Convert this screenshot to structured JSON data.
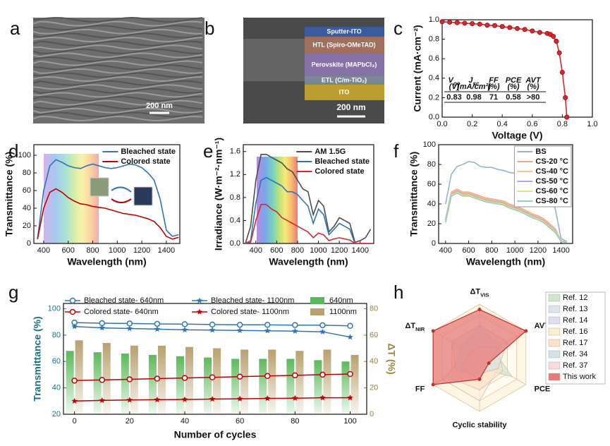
{
  "panel_labels": [
    "a",
    "b",
    "c",
    "d",
    "e",
    "f",
    "g",
    "h"
  ],
  "images": [
    {
      "scale_bar": "200 nm"
    },
    {
      "layers": [
        "Sputter-ITO",
        "HTL (Spiro-OMeTAD)",
        "Perovskite (MAPbCl₃)",
        "ETL (C/m-TiO₂)",
        "ITO"
      ],
      "scale_bar": "200 nm"
    }
  ],
  "chart_data": [
    {
      "type": "line",
      "marker": "circle",
      "color": "#d7262c",
      "x": [
        0,
        0.05,
        0.1,
        0.15,
        0.2,
        0.25,
        0.3,
        0.35,
        0.4,
        0.45,
        0.5,
        0.55,
        0.6,
        0.65,
        0.7,
        0.72,
        0.74,
        0.76,
        0.78,
        0.8,
        0.82,
        0.83
      ],
      "values": [
        0.98,
        0.975,
        0.97,
        0.965,
        0.96,
        0.955,
        0.945,
        0.94,
        0.93,
        0.92,
        0.91,
        0.9,
        0.885,
        0.87,
        0.86,
        0.85,
        0.83,
        0.78,
        0.66,
        0.46,
        0.2,
        0.0
      ],
      "x_label": "Voltage (V)",
      "y_label": "Current (mA·cm⁻²)",
      "xlim": [
        0,
        1
      ],
      "ylim": [
        0,
        1
      ],
      "xticks": [
        {
          "value": 0,
          "label": "0.0"
        },
        {
          "value": 0.2,
          "label": "0.2"
        },
        {
          "value": 0.4,
          "label": "0.4"
        },
        {
          "value": 0.6,
          "label": "0.6"
        },
        {
          "value": 0.8,
          "label": "0.8"
        },
        {
          "value": 1,
          "label": "1.0"
        }
      ],
      "yticks": [
        {
          "value": 0,
          "label": "0.0"
        },
        {
          "value": 0.2,
          "label": "0.2"
        },
        {
          "value": 0.4,
          "label": "0.4"
        },
        {
          "value": 0.6,
          "label": "0.6"
        },
        {
          "value": 0.8,
          "label": "0.8"
        },
        {
          "value": 1,
          "label": "1.0"
        }
      ],
      "table": {
        "columns": [
          {
            "symbol": "V",
            "sub": "oc",
            "unit": "(V)"
          },
          {
            "symbol": "J",
            "sub": "sc",
            "unit": "(mA/cm²)"
          },
          {
            "symbol": "FF",
            "unit": "(%)"
          },
          {
            "symbol": "PCE",
            "unit": "(%)"
          },
          {
            "symbol": "AVT",
            "unit": "(%)"
          }
        ],
        "values": [
          "0.83",
          "0.98",
          "71",
          "0.58",
          ">80"
        ]
      }
    },
    {
      "type": "line",
      "legend": "upper right",
      "x": [
        350,
        400,
        450,
        500,
        550,
        600,
        650,
        700,
        750,
        800,
        850,
        900,
        950,
        1000,
        1050,
        1100,
        1150,
        1200,
        1250,
        1300,
        1350,
        1400,
        1450,
        1500
      ],
      "series": [
        {
          "name": "Bleached state",
          "color": "#2e75b6",
          "values": [
            5,
            60,
            88,
            95,
            92,
            88,
            86,
            85,
            88,
            90,
            88,
            86,
            85,
            86,
            88,
            90,
            89,
            86,
            80,
            72,
            50,
            15,
            8,
            10
          ]
        },
        {
          "name": "Colored state",
          "color": "#c00000",
          "values": [
            5,
            40,
            58,
            62,
            58,
            52,
            48,
            45,
            44,
            42,
            41,
            40,
            38,
            36,
            34,
            33,
            32,
            30,
            28,
            25,
            18,
            8,
            5,
            7
          ]
        }
      ],
      "x_label": "Wavelength (nm)",
      "y_label": "Transmittance (%)",
      "xlim": [
        320,
        1510
      ],
      "ylim": [
        0,
        112
      ],
      "xticks": [
        400,
        600,
        800,
        1000,
        1200,
        1400
      ],
      "yticks": [
        0,
        20,
        40,
        60,
        80,
        100
      ]
    },
    {
      "type": "line",
      "legend": "upper right",
      "x": [
        300,
        350,
        400,
        450,
        500,
        550,
        600,
        650,
        700,
        750,
        800,
        850,
        900,
        950,
        1000,
        1050,
        1100,
        1150,
        1200,
        1250,
        1300,
        1350,
        1400,
        1450,
        1500
      ],
      "series": [
        {
          "name": "AM 1.5G",
          "color": "#4d4d4d",
          "values": [
            0,
            0.3,
            1.1,
            1.55,
            1.55,
            1.5,
            1.45,
            1.4,
            1.3,
            1.25,
            1.1,
            0.95,
            0.9,
            0.5,
            0.75,
            0.65,
            0.2,
            0.3,
            0.45,
            0.4,
            0.35,
            0.02,
            0.05,
            0.1,
            0.25
          ]
        },
        {
          "name": "Bleached state",
          "color": "#2e75b6",
          "values": [
            0,
            0.05,
            0.7,
            1.1,
            1.15,
            1.1,
            1.05,
            1.0,
            0.9,
            0.9,
            0.85,
            0.75,
            0.65,
            0.35,
            0.6,
            0.5,
            0.15,
            0.25,
            0.35,
            0.3,
            0.25,
            0,
            0,
            0,
            0
          ]
        },
        {
          "name": "Colored state",
          "color": "#d7262c",
          "values": [
            0,
            0.02,
            0.4,
            0.68,
            0.68,
            0.6,
            0.55,
            0.45,
            0.4,
            0.35,
            0.3,
            0.25,
            0.2,
            0.1,
            0.18,
            0.15,
            0.05,
            0.08,
            0.1,
            0.08,
            0.06,
            0,
            0,
            0,
            0
          ]
        }
      ],
      "x_label": "Wavelength (nm)",
      "y_label": "Irradiance (W·m⁻²·nm⁻¹)",
      "xlim": [
        280,
        1530
      ],
      "ylim": [
        0,
        1.72
      ],
      "xticks": [
        400,
        600,
        800,
        1000,
        1200,
        1400
      ],
      "yticks": [
        {
          "value": 0,
          "label": "0.0"
        },
        {
          "value": 0.4,
          "label": "0.4"
        },
        {
          "value": 0.8,
          "label": "0.8"
        },
        {
          "value": 1.2,
          "label": "1.2"
        },
        {
          "value": 1.6,
          "label": "1.6"
        }
      ]
    },
    {
      "type": "line",
      "legend": "upper right",
      "legend_frame": true,
      "x": [
        400,
        450,
        500,
        550,
        600,
        650,
        700,
        750,
        800,
        850,
        900,
        950,
        1000,
        1050,
        1100,
        1150,
        1200,
        1250,
        1300,
        1350,
        1400,
        1450
      ],
      "series": [
        {
          "name": "BS",
          "color": "#8fb4d6",
          "values": [
            40,
            70,
            78,
            80,
            83,
            82,
            78,
            77,
            77,
            75,
            74,
            72,
            71,
            70,
            68,
            65,
            60,
            55,
            48,
            35,
            5,
            2
          ]
        },
        {
          "name": "CS-20 °C",
          "color": "#f4a582",
          "values": [
            25,
            52,
            55,
            52,
            52,
            50,
            48,
            46,
            45,
            44,
            43,
            40,
            38,
            36,
            33,
            30,
            28,
            25,
            20,
            15,
            3,
            1
          ]
        },
        {
          "name": "CS-40 °C",
          "color": "#f7c48d",
          "values": [
            24,
            51,
            54,
            51,
            51,
            49,
            47,
            45,
            44,
            43,
            42,
            39,
            37,
            35,
            32,
            29,
            27,
            24,
            19,
            14,
            3,
            1
          ]
        },
        {
          "name": "CS-50 °C",
          "color": "#b4a7d6",
          "values": [
            23,
            50,
            53,
            50,
            50,
            48,
            46,
            44,
            43,
            42,
            41,
            38,
            36,
            34,
            31,
            28,
            26,
            23,
            18,
            13,
            2,
            1
          ]
        },
        {
          "name": "CS-60 °C",
          "color": "#f0dc7a",
          "values": [
            22,
            49,
            52,
            49,
            49,
            47,
            45,
            43,
            42,
            41,
            40,
            37,
            35,
            33,
            30,
            27,
            25,
            22,
            17,
            12,
            2,
            1
          ]
        },
        {
          "name": "CS-80 °C",
          "color": "#8fd0c2",
          "values": [
            21,
            48,
            51,
            48,
            48,
            46,
            44,
            42,
            41,
            40,
            39,
            36,
            34,
            32,
            29,
            26,
            24,
            21,
            16,
            11,
            2,
            1
          ]
        }
      ],
      "x_label": "Wavelength (nm)",
      "y_label": "Transmittance (%)",
      "xlim": [
        340,
        1500
      ],
      "ylim": [
        0,
        100
      ],
      "xticks": [
        400,
        600,
        800,
        1000,
        1200,
        1400
      ],
      "yticks": [
        0,
        20,
        40,
        60,
        80,
        100
      ]
    },
    {
      "type": "combo",
      "x": [
        0,
        10,
        20,
        30,
        40,
        50,
        60,
        70,
        80,
        90,
        100
      ],
      "series": [
        {
          "name": "Bleached state- 640nm",
          "color": "#2e75b6",
          "marker": "circle",
          "values": [
            89.5,
            89,
            88.8,
            88.5,
            88.3,
            88,
            87.8,
            87.8,
            87.6,
            87.5,
            87
          ]
        },
        {
          "name": "Bleached state- 1100nm",
          "color": "#2e75b6",
          "marker": "star",
          "values": [
            86.5,
            85.5,
            85,
            84.5,
            84,
            83.8,
            83.5,
            83.3,
            83,
            82.5,
            78.5
          ]
        },
        {
          "name": "Colored state- 640nm",
          "color": "#c00000",
          "marker": "circle",
          "values": [
            45.5,
            46,
            46.5,
            47,
            47.5,
            48,
            48.5,
            49,
            49.5,
            50,
            50.5
          ]
        },
        {
          "name": "Colored state- 1100nm",
          "color": "#c00000",
          "marker": "star",
          "values": [
            30,
            30.5,
            30.8,
            31,
            31.2,
            31.5,
            31.7,
            32,
            32.2,
            32.5,
            32.5
          ]
        },
        {
          "name": "640nm",
          "color": "#5cb85c",
          "type": "bar",
          "axis": "y2",
          "values": [
            48,
            47,
            46,
            45,
            44,
            43,
            42,
            42,
            42,
            41,
            40
          ]
        },
        {
          "name": "1100nm",
          "color": "#b8a070",
          "type": "bar",
          "axis": "y2",
          "values": [
            56,
            54,
            52,
            52,
            51,
            50,
            49,
            49,
            48,
            49,
            45
          ]
        }
      ],
      "x_label": "Number of cycles",
      "y_label": "Transmittance (%)",
      "y2_label": "ΔT (%)",
      "xlim": [
        -4,
        106
      ],
      "ylim": [
        20,
        104
      ],
      "y2lim": [
        0,
        84
      ],
      "xticks": [
        0,
        20,
        40,
        60,
        80,
        100
      ],
      "yticks": [
        20,
        40,
        60,
        80,
        100
      ],
      "y2ticks": [
        0,
        20,
        40,
        60,
        80
      ]
    },
    {
      "type": "radar",
      "legend": "right",
      "axes": [
        {
          "text": "ΔT",
          "sub": "VIS"
        },
        "AVT",
        "PCE",
        "Cyclic stability",
        "FF",
        {
          "text": "ΔT",
          "sub": "NIR"
        }
      ],
      "rlim": [
        0,
        5
      ],
      "series": [
        {
          "name": "Ref. 12",
          "color": "#cfe6cc",
          "values": [
            2,
            1.5,
            3.5,
            1,
            2,
            1.5
          ]
        },
        {
          "name": "Ref. 13",
          "color": "#dde4f0",
          "values": [
            3,
            2,
            1.5,
            1,
            2,
            2
          ]
        },
        {
          "name": "Ref. 14",
          "color": "#e3dcf0",
          "values": [
            2.5,
            2.5,
            1,
            1.5,
            3,
            2
          ]
        },
        {
          "name": "Ref. 16",
          "color": "#fbefcf",
          "values": [
            1.5,
            1,
            2,
            4,
            4,
            1
          ]
        },
        {
          "name": "Ref. 17",
          "color": "#fde1c8",
          "values": [
            2,
            2,
            2.5,
            3,
            3.5,
            1.5
          ]
        },
        {
          "name": "Ref. 34",
          "color": "#d3e2e6",
          "values": [
            3,
            3,
            2,
            1.5,
            2.5,
            3
          ]
        },
        {
          "name": "Ref. 37",
          "color": "#f6dcdc",
          "values": [
            1,
            2,
            1,
            2,
            2,
            1
          ]
        },
        {
          "name": "This work",
          "color": "#e57a7a",
          "values": [
            4.5,
            5,
            1,
            2,
            5,
            5
          ]
        }
      ]
    }
  ]
}
